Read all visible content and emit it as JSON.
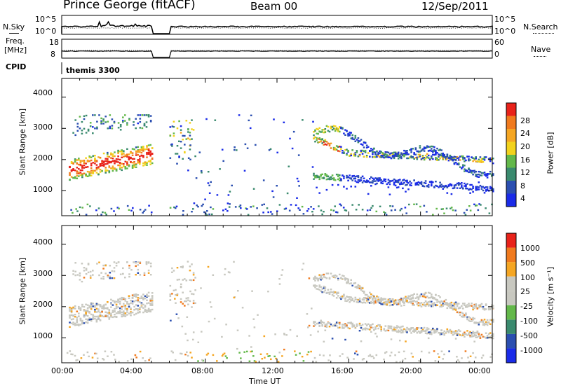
{
  "header": {
    "station": "Prince George (fitACF)",
    "beam": "Beam 00",
    "date": "12/Sep/2011"
  },
  "strips": {
    "noise_left_label": "N.Sky",
    "noise_left_ticks": [
      "10^5",
      "10^0"
    ],
    "noise_right_label": "N.Search",
    "noise_right_ticks": [
      "10^5",
      "10^0"
    ],
    "freq_left_label_1": "Freq.",
    "freq_left_label_2": "[MHz]",
    "freq_left_ticks": [
      "18",
      "8"
    ],
    "freq_right_label": "Nave",
    "freq_right_ticks": [
      "60",
      "0"
    ],
    "cpid_label": "CPID",
    "cpid_value": "themis 3300"
  },
  "colors": {
    "power": [
      "#1a2be8",
      "#2b4fb0",
      "#3a8a6e",
      "#63b84a",
      "#f2d21c",
      "#f5a623",
      "#f07a1e",
      "#e8221a"
    ],
    "velocity": [
      "#e8221a",
      "#f07a1e",
      "#f5a623",
      "#c8c8c0",
      "#c8c8c0",
      "#63b84a",
      "#3a8a6e",
      "#2b4fb0",
      "#1a2be8"
    ]
  },
  "chart_data": [
    {
      "type": "heatmap",
      "panel": "power",
      "ylabel": "Slant Range [km]",
      "yticks": [
        "4000",
        "3000",
        "2000",
        "1000"
      ],
      "ylim": [
        200,
        4600
      ],
      "xlim": [
        0,
        24
      ],
      "xtick_labels": [
        "00:00",
        "04:00",
        "08:00",
        "12:00",
        "16:00",
        "20:00",
        "00:00"
      ],
      "colorbar_label": "Power [dB]",
      "colorbar_ticks": [
        "28",
        "24",
        "20",
        "16",
        "12",
        "8",
        "4"
      ],
      "colorbar_range": [
        0,
        30
      ]
    },
    {
      "type": "heatmap",
      "panel": "velocity",
      "ylabel": "Slant Range [km]",
      "yticks": [
        "4000",
        "3000",
        "2000",
        "1000"
      ],
      "ylim": [
        200,
        4600
      ],
      "xlim": [
        0,
        24
      ],
      "xlabel": "Time UT",
      "xtick_labels": [
        "00:00",
        "04:00",
        "08:00",
        "12:00",
        "16:00",
        "20:00",
        "00:00"
      ],
      "colorbar_label": "Velocity [m s⁻¹]",
      "colorbar_ticks": [
        "1000",
        "500",
        "100",
        "25",
        "-25",
        "-100",
        "-500",
        "-1000"
      ]
    }
  ]
}
